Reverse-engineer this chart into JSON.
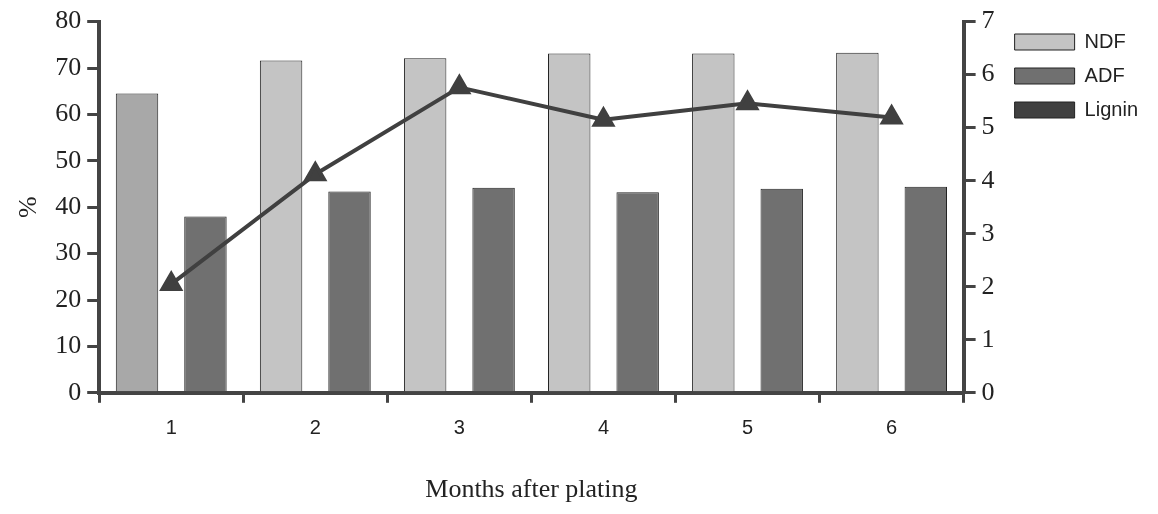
{
  "chart_data": {
    "type": "bar",
    "xlabel": "Months after plating",
    "ylabel": "%",
    "categories": [
      "1",
      "2",
      "3",
      "4",
      "5",
      "6"
    ],
    "series": [
      {
        "name": "NDF",
        "color": "#c4c4c4",
        "colors": [
          "#a8a8a8",
          "#c4c4c4",
          "#c4c4c4",
          "#c4c4c4",
          "#c4c4c4",
          "#c4c4c4"
        ],
        "values": [
          64.5,
          71.6,
          72.1,
          73.1,
          73.1,
          73.3
        ]
      },
      {
        "name": "ADF",
        "color": "#707070",
        "values": [
          38.0,
          43.4,
          44.2,
          43.2,
          44.0,
          44.4
        ]
      },
      {
        "name": "Lignin",
        "type": "line",
        "axis": "y2",
        "color": "#404040",
        "values": [
          2.05,
          4.12,
          5.76,
          5.15,
          5.46,
          5.19
        ]
      }
    ],
    "ylim": [
      0,
      80
    ],
    "yticks": [
      0,
      10,
      20,
      30,
      40,
      50,
      60,
      70,
      80
    ],
    "y2lim": [
      0,
      7
    ],
    "y2ticks": [
      0,
      1,
      2,
      3,
      4,
      5,
      6,
      7
    ],
    "grid": false,
    "legend": "top right",
    "marker": "triangle",
    "line_style": "solid"
  }
}
